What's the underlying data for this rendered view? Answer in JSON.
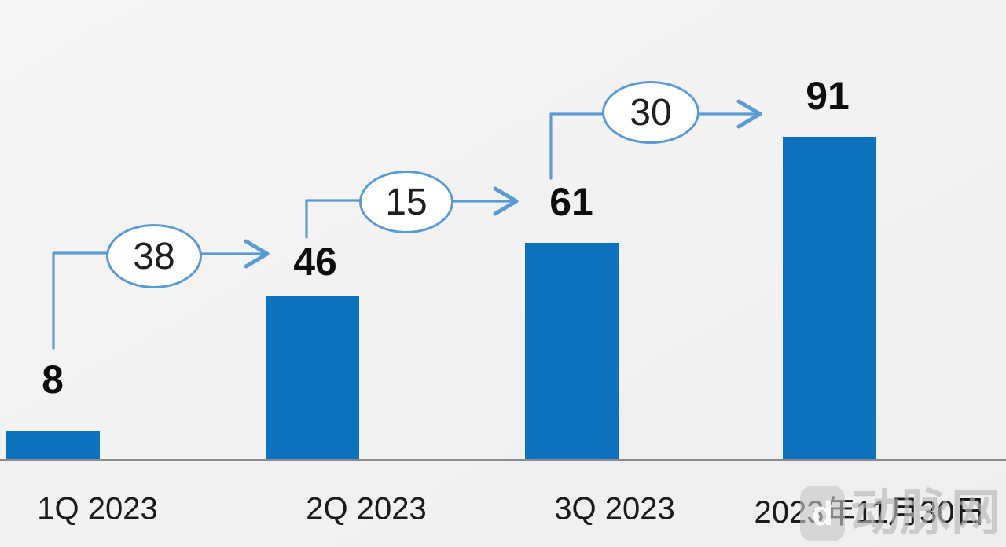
{
  "chart_data": {
    "type": "bar",
    "categories": [
      "1Q 2023",
      "2Q 2023",
      "3Q 2023",
      "2023年11月30日"
    ],
    "values": [
      8,
      46,
      61,
      91
    ],
    "increments": [
      38,
      15,
      30
    ],
    "title": "",
    "xlabel": "",
    "ylabel": "",
    "ylim": [
      0,
      100
    ],
    "grid": false,
    "legend": "none",
    "annotation_style": "oval-callouts-with-arrows-showing-increase-between-bars",
    "colors": {
      "bar": "#0C72BE",
      "connector": "#5B9BD5",
      "axis_line": "#8A8A8A",
      "background": "#F2F1F1",
      "label_text": "#0D0D0D"
    }
  },
  "watermark": {
    "logo_letter": "d",
    "text": "动脉网",
    "color": "#BBBBBB"
  }
}
